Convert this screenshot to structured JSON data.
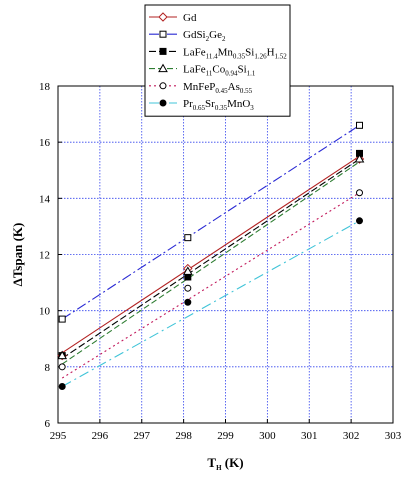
{
  "chart_data": {
    "type": "line",
    "xlabel": {
      "main": "T",
      "sub": "H",
      "rest": " (K)"
    },
    "ylabel": "ΔTspan (K)",
    "xlim": [
      295,
      303
    ],
    "ylim": [
      6,
      18
    ],
    "xticks": [
      "295",
      "296",
      "297",
      "298",
      "299",
      "300",
      "301",
      "302",
      "303"
    ],
    "yticks": [
      "6",
      "8",
      "10",
      "12",
      "14",
      "16",
      "18"
    ],
    "grid": true,
    "legend_position": "top",
    "series": [
      {
        "name_parts": [
          [
            "Gd",
            ""
          ]
        ],
        "color": "#b22222",
        "dash": "",
        "marker": "diamond-open",
        "line": {
          "x": [
            295.1,
            302.2
          ],
          "y": [
            8.5,
            15.5
          ]
        },
        "points": {
          "x": [
            295.1,
            298.1,
            302.2
          ],
          "y": [
            8.4,
            11.5,
            15.4
          ]
        }
      },
      {
        "name_parts": [
          [
            "GdSi",
            ""
          ],
          [
            "2",
            "sub"
          ],
          [
            "Ge",
            ""
          ],
          [
            "2",
            "sub"
          ]
        ],
        "color": "#2a2ad4",
        "dash": "10,3,2,3",
        "marker": "square-open",
        "line": {
          "x": [
            295.1,
            302.2
          ],
          "y": [
            9.7,
            16.6
          ]
        },
        "points": {
          "x": [
            295.1,
            298.1,
            302.2
          ],
          "y": [
            9.7,
            12.6,
            16.6
          ]
        }
      },
      {
        "name_parts": [
          [
            "LaFe",
            ""
          ],
          [
            "11.4",
            "sub"
          ],
          [
            "Mn",
            ""
          ],
          [
            "0.35",
            "sub"
          ],
          [
            "Si",
            ""
          ],
          [
            "1.26",
            "sub"
          ],
          [
            "H",
            ""
          ],
          [
            "1.52",
            "sub"
          ]
        ],
        "color": "#000000",
        "dash": "7,3",
        "marker": "square-filled",
        "line": {
          "x": [
            295.1,
            302.2
          ],
          "y": [
            8.3,
            15.4
          ]
        },
        "points": {
          "x": [
            295.1,
            298.1,
            302.2
          ],
          "y": [
            8.4,
            11.2,
            15.6
          ]
        }
      },
      {
        "name_parts": [
          [
            "LaFe",
            ""
          ],
          [
            "11",
            "sub"
          ],
          [
            "Co",
            ""
          ],
          [
            "0.94",
            "sub"
          ],
          [
            "Si",
            ""
          ],
          [
            "1.1",
            "sub"
          ]
        ],
        "color": "#2e7d32",
        "dash": "6,3",
        "marker": "triangle-open",
        "line": {
          "x": [
            295.1,
            302.2
          ],
          "y": [
            8.1,
            15.3
          ]
        },
        "points": {
          "x": [
            295.1,
            298.1,
            302.2
          ],
          "y": [
            8.4,
            11.4,
            15.4
          ]
        }
      },
      {
        "name_parts": [
          [
            "MnFeP",
            ""
          ],
          [
            "0.45",
            "sub"
          ],
          [
            "As",
            ""
          ],
          [
            "0.55",
            "sub"
          ]
        ],
        "color": "#c2185b",
        "dash": "2,3",
        "marker": "circle-open",
        "line": {
          "x": [
            295.1,
            302.2
          ],
          "y": [
            7.6,
            14.2
          ]
        },
        "points": {
          "x": [
            295.1,
            298.1,
            302.2
          ],
          "y": [
            8.0,
            10.8,
            14.2
          ]
        }
      },
      {
        "name_parts": [
          [
            "Pr",
            ""
          ],
          [
            "0.65",
            "sub"
          ],
          [
            "Sr",
            ""
          ],
          [
            "0.35",
            "sub"
          ],
          [
            "MnO",
            ""
          ],
          [
            "3",
            "sub"
          ]
        ],
        "color": "#40c4d8",
        "dash": "10,4,2,4",
        "marker": "circle-filled",
        "line": {
          "x": [
            295.1,
            302.2
          ],
          "y": [
            7.3,
            13.2
          ]
        },
        "points": {
          "x": [
            295.1,
            298.1,
            302.2
          ],
          "y": [
            7.3,
            10.3,
            13.2
          ]
        }
      }
    ]
  }
}
